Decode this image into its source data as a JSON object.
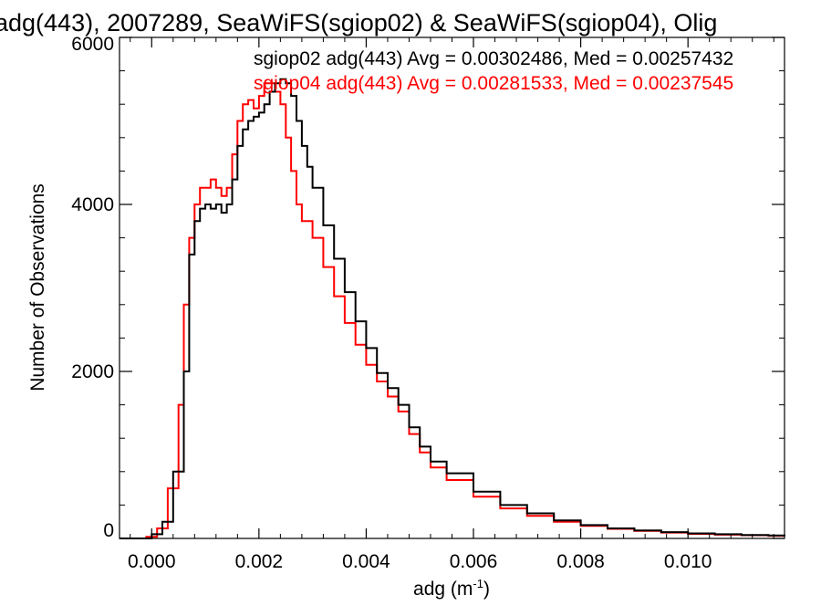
{
  "chart_data": {
    "type": "line",
    "title": "adg(443), 2007289, SeaWiFS(sgiop02) & SeaWiFS(sgiop04), Olig",
    "xlabel": "adg (m",
    "xlabel_superscript": "-1",
    "xlabel_suffix": ")",
    "ylabel": "Number of Observations",
    "xlim": [
      -0.0006,
      0.0118
    ],
    "ylim": [
      0,
      6000
    ],
    "x_ticks": [
      0.0,
      0.002,
      0.004,
      0.006,
      0.008,
      0.01
    ],
    "x_tick_labels": [
      "0.000",
      "0.002",
      "0.004",
      "0.006",
      "0.008",
      "0.010"
    ],
    "y_ticks": [
      0,
      2000,
      4000,
      6000
    ],
    "y_tick_labels": [
      "0",
      "2000",
      "4000",
      "6000"
    ],
    "grid": false,
    "legend": "top-right",
    "annotations": [
      {
        "text": "sgiop02 adg(443) Avg = 0.00302486, Med = 0.00257432",
        "color": "#000000"
      },
      {
        "text": "sgiop04 adg(443) Avg = 0.00281533, Med = 0.00237545",
        "color": "#ff0000"
      }
    ],
    "series": [
      {
        "name": "sgiop02",
        "color": "#000000",
        "step": true,
        "x": [
          -0.0006,
          -0.0002,
          0.0,
          0.0002,
          0.0004,
          0.0006,
          0.0007,
          0.0008,
          0.0009,
          0.001,
          0.0011,
          0.0012,
          0.0013,
          0.0014,
          0.0015,
          0.0016,
          0.0017,
          0.0018,
          0.0019,
          0.002,
          0.0021,
          0.0022,
          0.0023,
          0.0024,
          0.0025,
          0.0026,
          0.0027,
          0.0028,
          0.0029,
          0.003,
          0.0032,
          0.0034,
          0.0036,
          0.0038,
          0.004,
          0.0042,
          0.0044,
          0.0046,
          0.0048,
          0.005,
          0.0052,
          0.0055,
          0.006,
          0.0065,
          0.007,
          0.0075,
          0.008,
          0.0085,
          0.009,
          0.0095,
          0.01,
          0.0105,
          0.011,
          0.0115,
          0.0118
        ],
        "y": [
          0,
          0,
          50,
          200,
          800,
          2000,
          3400,
          3800,
          3950,
          4000,
          3950,
          4000,
          3900,
          4000,
          4300,
          4700,
          4900,
          5000,
          5050,
          5100,
          5200,
          5350,
          5450,
          5500,
          5450,
          5300,
          5000,
          4700,
          4450,
          4200,
          3750,
          3350,
          2950,
          2600,
          2280,
          1980,
          1800,
          1600,
          1330,
          1100,
          920,
          780,
          560,
          400,
          300,
          215,
          160,
          120,
          95,
          75,
          60,
          50,
          40,
          35,
          30
        ]
      },
      {
        "name": "sgiop04",
        "color": "#ff0000",
        "step": true,
        "x": [
          -0.0006,
          -0.0002,
          -0.0001,
          0.0001,
          0.0003,
          0.0005,
          0.0006,
          0.0007,
          0.0008,
          0.0009,
          0.001,
          0.0011,
          0.0012,
          0.0013,
          0.0014,
          0.0015,
          0.0016,
          0.0017,
          0.0018,
          0.0019,
          0.002,
          0.0021,
          0.0022,
          0.0023,
          0.0024,
          0.0025,
          0.0026,
          0.0027,
          0.0028,
          0.003,
          0.0032,
          0.0034,
          0.0036,
          0.0038,
          0.004,
          0.0042,
          0.0044,
          0.0046,
          0.0048,
          0.005,
          0.0052,
          0.0055,
          0.006,
          0.0065,
          0.007,
          0.0075,
          0.008,
          0.0085,
          0.009,
          0.0095,
          0.01,
          0.0105,
          0.011,
          0.0115,
          0.0118
        ],
        "y": [
          0,
          0,
          20,
          120,
          600,
          1600,
          2800,
          3600,
          4000,
          4200,
          4200,
          4300,
          4200,
          4100,
          4200,
          4600,
          5000,
          5200,
          5250,
          5150,
          5300,
          5450,
          5450,
          5350,
          5200,
          4800,
          4400,
          4000,
          3800,
          3600,
          3250,
          2900,
          2580,
          2320,
          2080,
          1880,
          1700,
          1520,
          1250,
          1030,
          850,
          700,
          500,
          360,
          270,
          200,
          150,
          115,
          90,
          70,
          55,
          45,
          38,
          32,
          28
        ]
      }
    ]
  }
}
